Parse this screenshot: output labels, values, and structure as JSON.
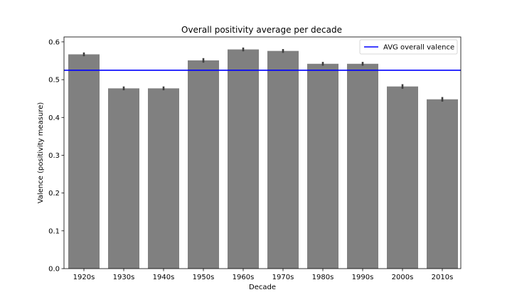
{
  "chart_data": {
    "type": "bar",
    "title": "Overall positivity average per decade",
    "xlabel": "Decade",
    "ylabel": "Valence (positivity measure)",
    "categories": [
      "1920s",
      "1930s",
      "1940s",
      "1950s",
      "1960s",
      "1970s",
      "1980s",
      "1990s",
      "2000s",
      "2010s"
    ],
    "values": [
      0.567,
      0.477,
      0.477,
      0.551,
      0.58,
      0.576,
      0.542,
      0.542,
      0.482,
      0.448
    ],
    "error_bars": [
      0.005,
      0.005,
      0.005,
      0.006,
      0.005,
      0.005,
      0.005,
      0.005,
      0.006,
      0.006
    ],
    "ylim": [
      0,
      0.613
    ],
    "yticks": [
      "0.0",
      "0.1",
      "0.2",
      "0.3",
      "0.4",
      "0.5",
      "0.6"
    ],
    "reference_line": {
      "label": "AVG overall valence",
      "value": 0.525,
      "color": "#0000ff"
    },
    "bar_color": "#808080",
    "errorbar_color": "#3f3f3f",
    "grid": false,
    "legend_position": "top-right"
  }
}
